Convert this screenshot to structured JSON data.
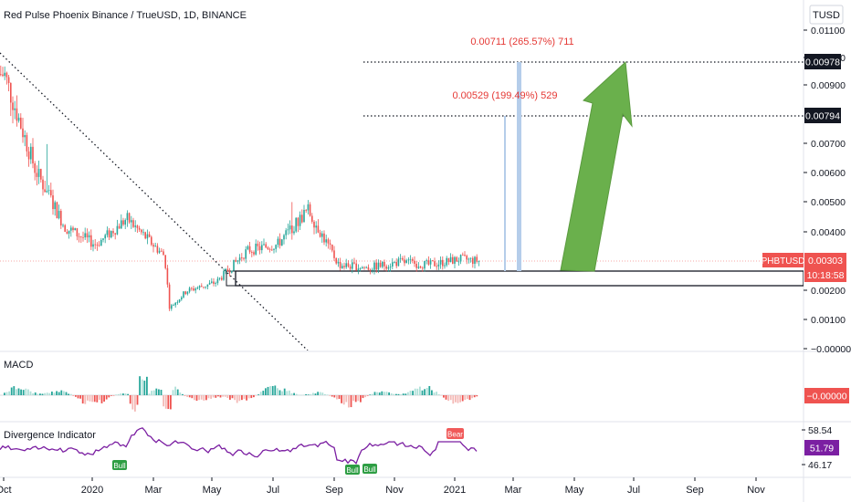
{
  "header": {
    "title": "Red Pulse Phoenix Binance / TrueUSD, 1D, BINANCE",
    "currency": "TUSD"
  },
  "colors": {
    "up": "#26a69a",
    "down": "#ef5350",
    "up_light": "#aee0d8",
    "down_light": "#f4b9b6",
    "purple": "#7b1fa2",
    "arrow": "#6ab04c",
    "measure": "#b5cdea",
    "label_red": "#e53935",
    "bull": "#2e9e44",
    "bear": "#f05a5a"
  },
  "price_axis": {
    "ticks": [
      "0.01100",
      "0.01000",
      "0.00900",
      "0.00700",
      "0.00600",
      "0.00500",
      "0.00400",
      "0.00200",
      "0.00100",
      "−0.00000"
    ],
    "tag_target": "0.00978",
    "tag_mid": "0.00794",
    "symbol_tag": "PHBTUSD",
    "last_price": "0.00303",
    "countdown": "10:18:58"
  },
  "time_axis": {
    "labels": [
      "Oct",
      "2020",
      "Mar",
      "May",
      "Jul",
      "Sep",
      "Nov",
      "2021",
      "Mar",
      "May",
      "Jul",
      "Sep",
      "Nov"
    ]
  },
  "annotations": {
    "target_measure": "0.00711 (265.57%) 711",
    "mid_measure": "0.00529 (199.49%) 529"
  },
  "macd": {
    "label": "MACD",
    "value": "−0.00000"
  },
  "divergence": {
    "label": "Divergence Indicator",
    "upper": "58.54",
    "current": "51.79",
    "lower": "46.17",
    "bull_label": "Bull",
    "bear_label": "Bear"
  },
  "chart_data": {
    "type": "candlestick",
    "title": "Red Pulse Phoenix Binance / TrueUSD, 1D, BINANCE",
    "ylim": [
      0,
      0.0115
    ],
    "support_zone": [
      0.00208,
      0.00262
    ],
    "horizontal_levels": [
      0.00978,
      0.00794
    ],
    "last_price": 0.00303,
    "series": [
      {
        "name": "PHBTUSD",
        "approx_close_path": [
          [
            "2019-10",
            0.0095
          ],
          [
            "2019-11",
            0.0062
          ],
          [
            "2019-12",
            0.0042
          ],
          [
            "2020-01",
            0.0036
          ],
          [
            "2020-02",
            0.0045
          ],
          [
            "2020-03-10",
            0.0032
          ],
          [
            "2020-03-15",
            0.0014
          ],
          [
            "2020-04",
            0.002
          ],
          [
            "2020-05",
            0.0023
          ],
          [
            "2020-06",
            0.0034
          ],
          [
            "2020-07",
            0.0036
          ],
          [
            "2020-08",
            0.0048
          ],
          [
            "2020-09",
            0.0029
          ],
          [
            "2020-10",
            0.0028
          ],
          [
            "2020-11",
            0.003
          ],
          [
            "2020-12",
            0.0029
          ],
          [
            "2021-01",
            0.0031
          ],
          [
            "2021-01-20",
            0.00303
          ]
        ]
      }
    ]
  }
}
